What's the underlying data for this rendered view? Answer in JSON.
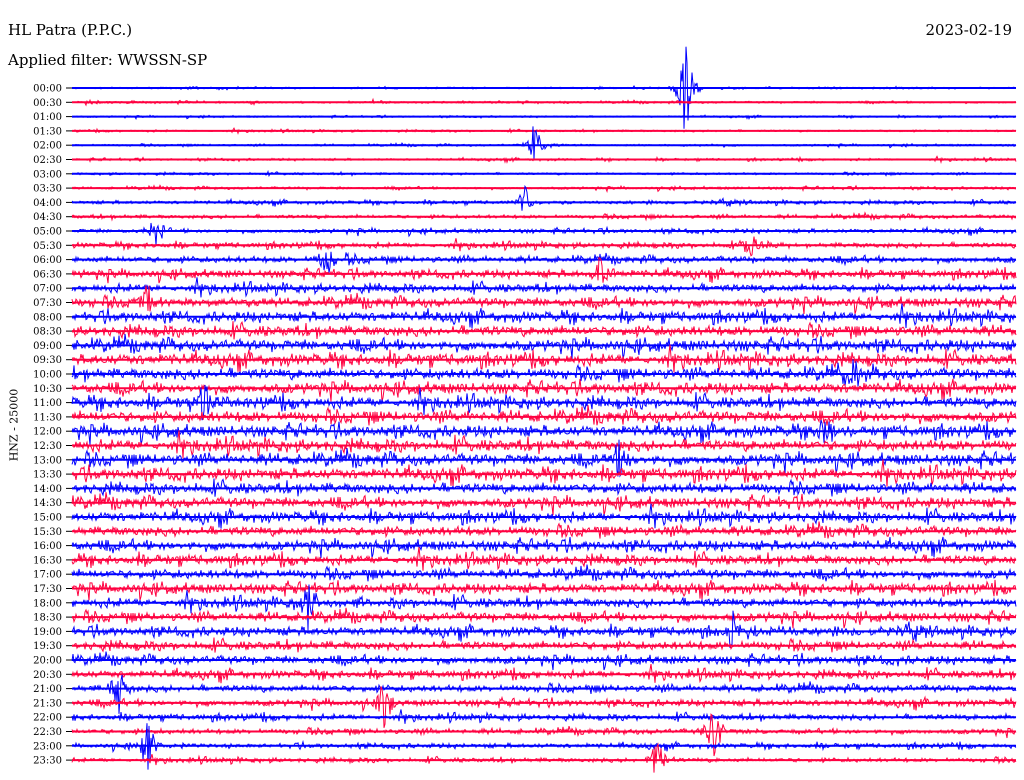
{
  "header": {
    "station": "HL Patra (P.P.C.)",
    "filter": "Applied filter: WWSSN-SP",
    "date": "2023-02-19"
  },
  "chart_data": {
    "type": "line",
    "title": "HL Patra (P.P.C.)",
    "subtitle": "Applied filter: WWSSN-SP",
    "ylabel": "HNZ - 25000",
    "rows": [
      "00:00",
      "00:30",
      "01:00",
      "01:30",
      "02:00",
      "02:30",
      "03:00",
      "03:30",
      "04:00",
      "04:30",
      "05:00",
      "05:30",
      "06:00",
      "06:30",
      "07:00",
      "07:30",
      "08:00",
      "08:30",
      "09:00",
      "09:30",
      "10:00",
      "10:30",
      "11:00",
      "11:30",
      "12:00",
      "12:30",
      "13:00",
      "13:30",
      "14:00",
      "14:30",
      "15:00",
      "15:30",
      "16:00",
      "16:30",
      "17:00",
      "17:30",
      "18:00",
      "18:30",
      "19:00",
      "19:30",
      "20:00",
      "20:30",
      "21:00",
      "21:30",
      "22:00",
      "22:30",
      "23:00",
      "23:30"
    ],
    "series_colors": [
      "#0000ff",
      "#ff0040"
    ],
    "noise_level": [
      0.6,
      0.7,
      0.6,
      0.7,
      0.7,
      0.8,
      0.8,
      0.9,
      1.2,
      1.3,
      1.4,
      1.8,
      2.2,
      2.6,
      2.8,
      3.2,
      3.4,
      3.6,
      3.8,
      3.9,
      3.8,
      3.7,
      3.8,
      3.9,
      3.8,
      3.9,
      3.9,
      3.8,
      3.6,
      3.5,
      3.4,
      3.3,
      3.4,
      3.3,
      3.2,
      3.3,
      3.2,
      3.1,
      3.0,
      3.0,
      2.8,
      2.6,
      2.4,
      2.2,
      2.0,
      1.8,
      1.6,
      1.5
    ],
    "events": [
      {
        "row": 0,
        "t": 0.65,
        "amp": 60,
        "color": 0
      },
      {
        "row": 4,
        "t": 0.49,
        "amp": 26,
        "color": 0
      },
      {
        "row": 8,
        "t": 0.48,
        "amp": 18,
        "color": 0
      },
      {
        "row": 10,
        "t": 0.09,
        "amp": 20,
        "color": 0
      },
      {
        "row": 11,
        "t": 0.72,
        "amp": 22,
        "color": 1
      },
      {
        "row": 12,
        "t": 0.27,
        "amp": 22,
        "color": 0
      },
      {
        "row": 13,
        "t": 0.56,
        "amp": 26,
        "color": 1
      },
      {
        "row": 15,
        "t": 0.08,
        "amp": 24,
        "color": 1
      },
      {
        "row": 20,
        "t": 0.83,
        "amp": 26,
        "color": 0
      },
      {
        "row": 22,
        "t": 0.14,
        "amp": 24,
        "color": 1
      },
      {
        "row": 24,
        "t": 0.8,
        "amp": 26,
        "color": 0
      },
      {
        "row": 26,
        "t": 0.58,
        "amp": 24,
        "color": 0
      },
      {
        "row": 36,
        "t": 0.25,
        "amp": 30,
        "color": 0
      },
      {
        "row": 38,
        "t": 0.7,
        "amp": 26,
        "color": 0
      },
      {
        "row": 42,
        "t": 0.05,
        "amp": 34,
        "color": 0
      },
      {
        "row": 43,
        "t": 0.33,
        "amp": 32,
        "color": 1
      },
      {
        "row": 45,
        "t": 0.68,
        "amp": 34,
        "color": 1
      },
      {
        "row": 46,
        "t": 0.08,
        "amp": 30,
        "color": 1
      },
      {
        "row": 47,
        "t": 0.62,
        "amp": 28,
        "color": 1
      }
    ]
  }
}
